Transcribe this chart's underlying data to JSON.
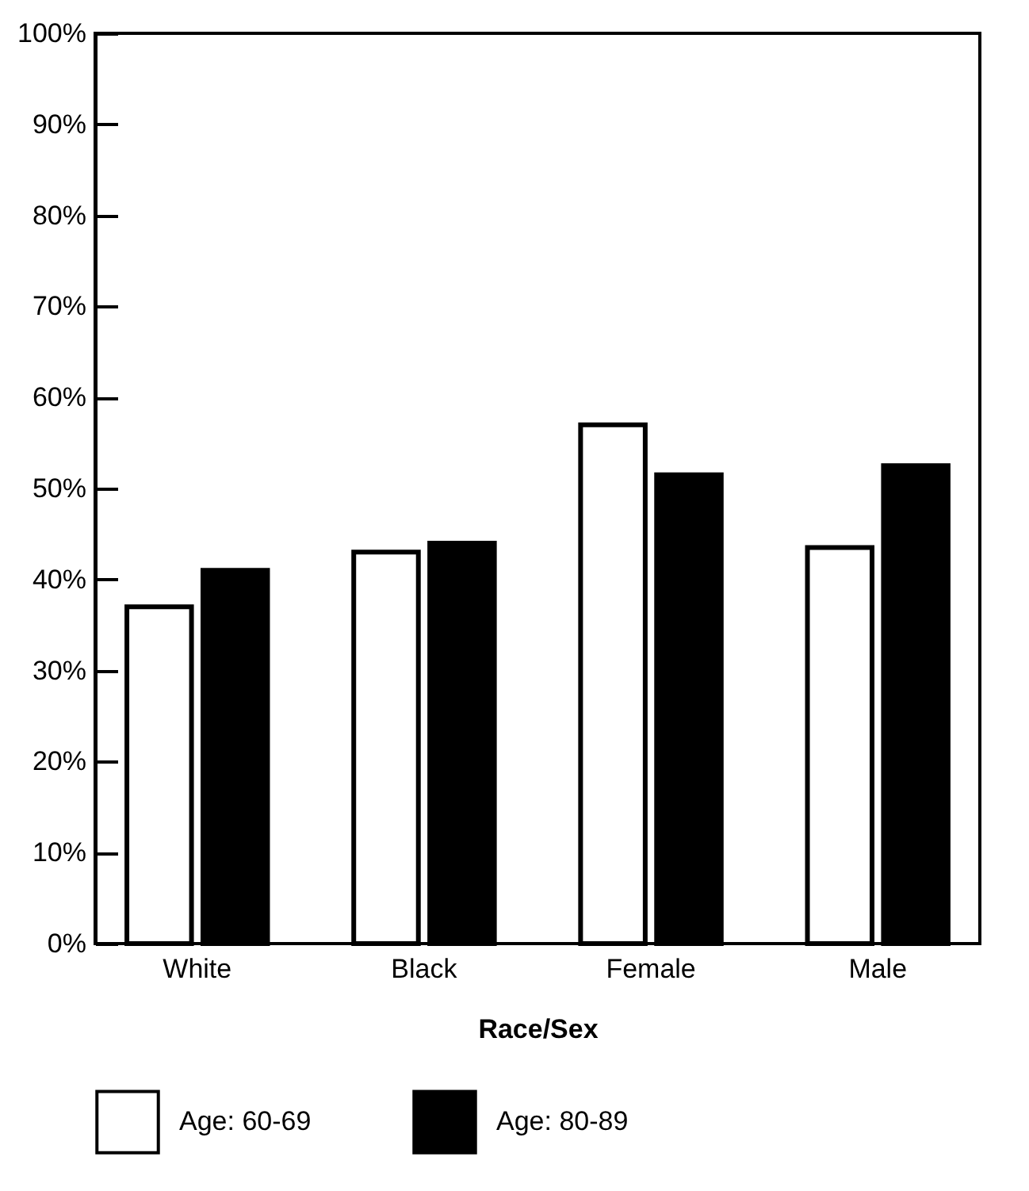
{
  "chart_data": {
    "type": "bar",
    "xlabel": "Race/Sex",
    "categories": [
      "White",
      "Black",
      "Female",
      "Male"
    ],
    "series": [
      {
        "name": "Age: 60-69",
        "color": "#ffffff",
        "values": [
          37,
          43,
          57,
          43.5
        ]
      },
      {
        "name": "Age: 80-89",
        "color": "#000000",
        "values": [
          41,
          44,
          51.5,
          52.5
        ]
      }
    ],
    "ylim": [
      0,
      100
    ],
    "yticks": [
      {
        "value": 0,
        "label": "0%"
      },
      {
        "value": 10,
        "label": "10%"
      },
      {
        "value": 20,
        "label": "20%"
      },
      {
        "value": 30,
        "label": "30%"
      },
      {
        "value": 40,
        "label": "40%"
      },
      {
        "value": 50,
        "label": "50%"
      },
      {
        "value": 60,
        "label": "60%"
      },
      {
        "value": 70,
        "label": "70%"
      },
      {
        "value": 80,
        "label": "80%"
      },
      {
        "value": 90,
        "label": "90%"
      },
      {
        "value": 100,
        "label": "100%"
      }
    ],
    "grid": false,
    "legend": "bottom"
  }
}
